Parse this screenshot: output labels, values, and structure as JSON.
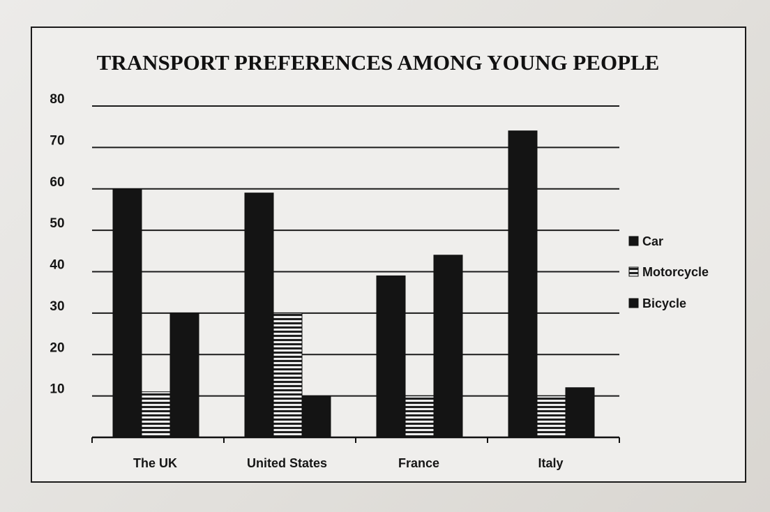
{
  "chart_data": {
    "type": "bar",
    "title": "TRANSPORT PREFERENCES AMONG YOUNG PEOPLE",
    "xlabel": "",
    "ylabel": "",
    "categories": [
      "The UK",
      "United States",
      "France",
      "Italy"
    ],
    "series": [
      {
        "name": "Car",
        "values": [
          60,
          59,
          39,
          74
        ],
        "color": "#141414",
        "pattern": "solid"
      },
      {
        "name": "Motorcycle",
        "values": [
          11,
          30,
          10,
          10
        ],
        "color": "#2a2a2a",
        "pattern": "horizontal-stripes"
      },
      {
        "name": "Bicycle",
        "values": [
          30,
          10,
          44,
          12
        ],
        "color": "#141414",
        "pattern": "solid"
      }
    ],
    "yticks": [
      10,
      20,
      30,
      40,
      50,
      60,
      70,
      80
    ],
    "ylim": [
      0,
      80
    ],
    "grid": true,
    "legend": "right"
  }
}
